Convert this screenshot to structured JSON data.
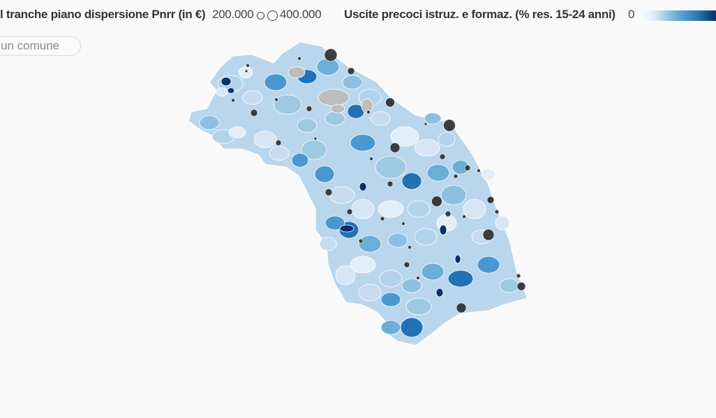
{
  "legend": {
    "bubble_title": "l tranche piano dispersione Pnrr (in €)",
    "bubble_small": "200.000",
    "bubble_large": "400.000",
    "color_title": "Uscite precoci istruz. e formaz. (% res. 15-24 anni)",
    "color_min": "0",
    "color_scale": [
      "#deebf7",
      "#9ecae1",
      "#6baed6",
      "#3182bd",
      "#08306b"
    ]
  },
  "search": {
    "placeholder": "un comune"
  },
  "map": {
    "region_fill": "#b9d6ec",
    "no_data_fill": "#bdbdbd",
    "bubble_color": "#2b2b2b"
  }
}
